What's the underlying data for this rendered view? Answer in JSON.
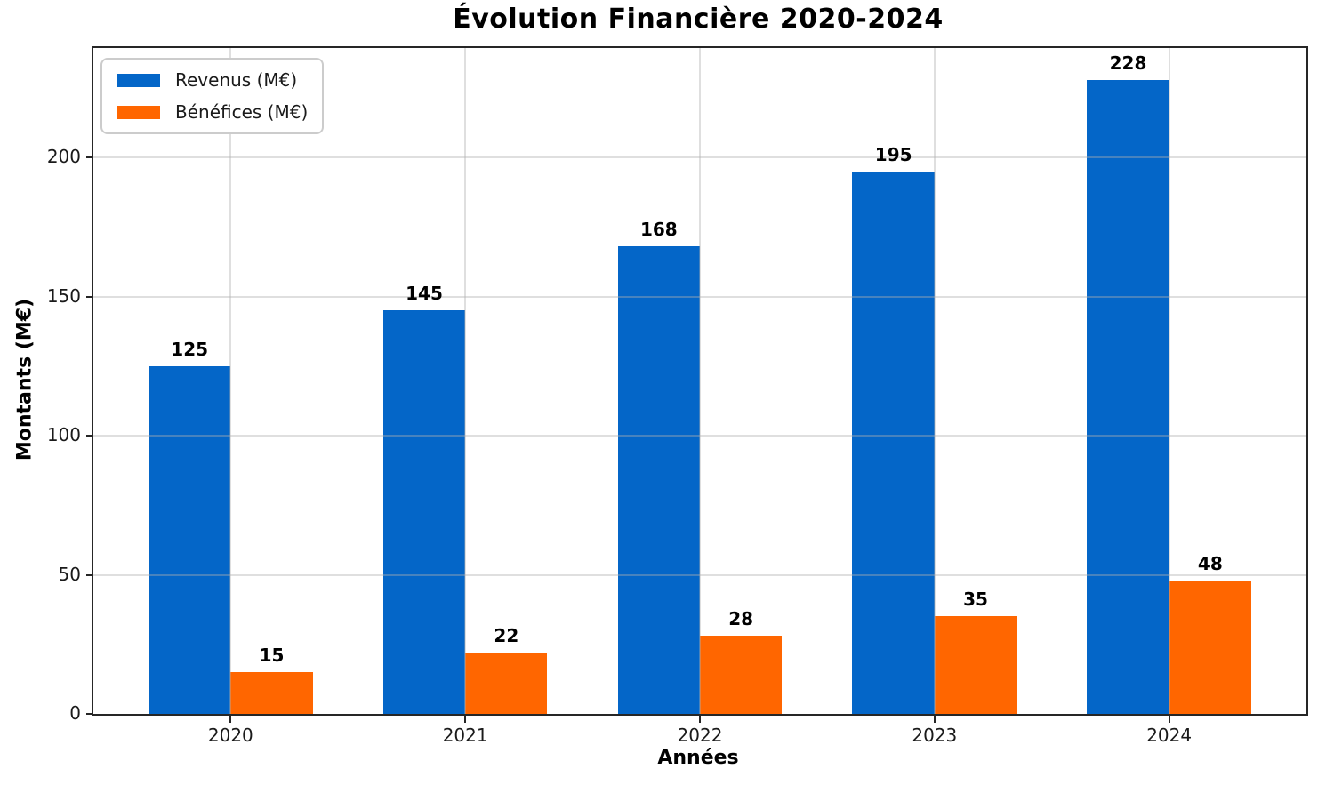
{
  "chart_data": {
    "type": "bar",
    "title": "Évolution Financière 2020-2024",
    "xlabel": "Années",
    "ylabel": "Montants (M€)",
    "categories": [
      "2020",
      "2021",
      "2022",
      "2023",
      "2024"
    ],
    "series": [
      {
        "key": "revenus",
        "name": "Revenus (M€)",
        "color": "#0466C8",
        "values": [
          125,
          145,
          168,
          195,
          228
        ]
      },
      {
        "key": "benefices",
        "name": "Bénéfices (M€)",
        "color": "#FF6600",
        "values": [
          15,
          22,
          28,
          35,
          48
        ]
      }
    ],
    "yticks": [
      0,
      50,
      100,
      150,
      200
    ],
    "ylim": [
      0,
      239.4
    ],
    "xlim": [
      -0.585,
      4.585
    ],
    "bar_width": 0.35,
    "grid": true,
    "grid_color": "#e2e2e2",
    "axis_color": "#262626",
    "background_color": "#ffffff",
    "legend_position": "upper-left",
    "value_labels": true
  }
}
